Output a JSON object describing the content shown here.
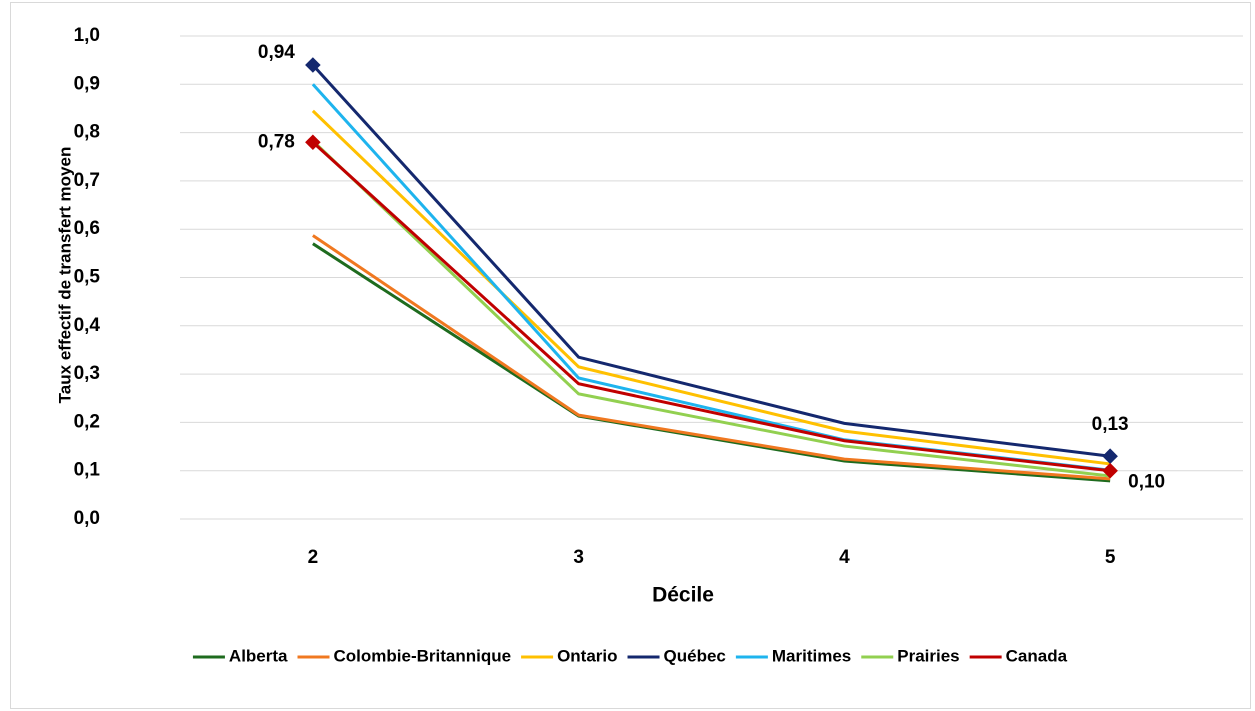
{
  "chart_data": {
    "type": "line",
    "x_label": "Décile",
    "y_label": "Taux effectif de transfert moyen",
    "categories": [
      "2",
      "3",
      "4",
      "5"
    ],
    "ylim": [
      0,
      1
    ],
    "yticks": [
      {
        "value": 0,
        "label": "0,0"
      },
      {
        "value": 0.1,
        "label": "0,1"
      },
      {
        "value": 0.2,
        "label": "0,2"
      },
      {
        "value": 0.3,
        "label": "0,3"
      },
      {
        "value": 0.4,
        "label": "0,4"
      },
      {
        "value": 0.5,
        "label": "0,5"
      },
      {
        "value": 0.6,
        "label": "0,6"
      },
      {
        "value": 0.7,
        "label": "0,7"
      },
      {
        "value": 0.8,
        "label": "0,8"
      },
      {
        "value": 0.9,
        "label": "0,9"
      },
      {
        "value": 1,
        "label": "1,0"
      }
    ],
    "grid": true,
    "legend": "bottom",
    "series": [
      {
        "name": "Alberta",
        "color": "#1e6b1e",
        "values": [
          0.57,
          0.213,
          0.12,
          0.079
        ]
      },
      {
        "name": "Colombie-Britannique",
        "color": "#f07820",
        "values": [
          0.587,
          0.215,
          0.124,
          0.083
        ]
      },
      {
        "name": "Ontario",
        "color": "#ffc000",
        "values": [
          0.845,
          0.315,
          0.182,
          0.114
        ]
      },
      {
        "name": "Québec",
        "color": "#14286e",
        "values": [
          0.94,
          0.335,
          0.198,
          0.13
        ],
        "value_labels": [
          "0,94",
          null,
          null,
          "0,13"
        ]
      },
      {
        "name": "Maritimes",
        "color": "#1eb4ee",
        "values": [
          0.9,
          0.292,
          0.164,
          0.101
        ]
      },
      {
        "name": "Prairies",
        "color": "#92d050",
        "values": [
          0.783,
          0.259,
          0.151,
          0.089
        ]
      },
      {
        "name": "Canada",
        "color": "#c00000",
        "values": [
          0.78,
          0.28,
          0.162,
          0.1
        ],
        "value_labels": [
          "0,78",
          null,
          null,
          "0,10"
        ]
      }
    ]
  }
}
